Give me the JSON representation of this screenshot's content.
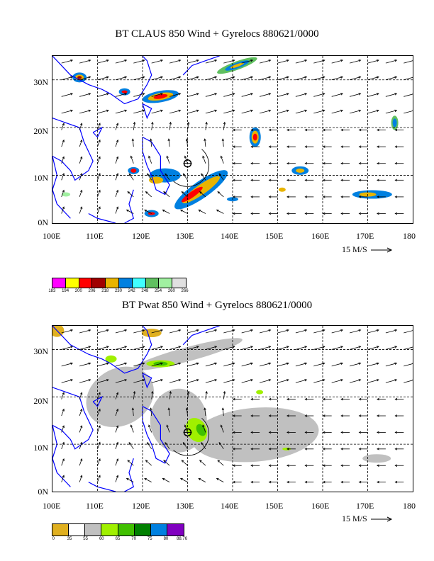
{
  "panels": [
    {
      "title": "BT CLAUS 850 Wind + Gyrelocs 880621/0000",
      "lon_labels": [
        "100E",
        "110E",
        "120E",
        "130E",
        "140E",
        "150E",
        "160E",
        "170E",
        "180"
      ],
      "lat_labels": [
        "30N",
        "20N",
        "10N",
        "0N"
      ],
      "vector_scale": "15 M/S",
      "legend_values": [
        "183",
        "194",
        "200",
        "206",
        "218",
        "230",
        "242",
        "248",
        "254",
        "260",
        "266"
      ],
      "legend_colors": [
        "#ff00ff",
        "#ffff00",
        "#ff0000",
        "#a00000",
        "#e8b400",
        "#0080e0",
        "#40ffff",
        "#60c060",
        "#a0f0a0",
        "#e0e0e0"
      ]
    },
    {
      "title": "BT Pwat 850 Wind + Gyrelocs 880621/0000",
      "lon_labels": [
        "100E",
        "110E",
        "120E",
        "130E",
        "140E",
        "150E",
        "160E",
        "170E",
        "180"
      ],
      "lat_labels": [
        "30N",
        "20N",
        "10N",
        "0N"
      ],
      "vector_scale": "15 M/S",
      "legend_values": [
        "0",
        "35",
        "55",
        "60",
        "65",
        "70",
        "75",
        "80",
        "88.76"
      ],
      "legend_colors": [
        "#e0b020",
        "#ffffff",
        "#c0c0c0",
        "#a0f000",
        "#40c000",
        "#008000",
        "#0080e0",
        "#8000c0"
      ]
    }
  ]
}
